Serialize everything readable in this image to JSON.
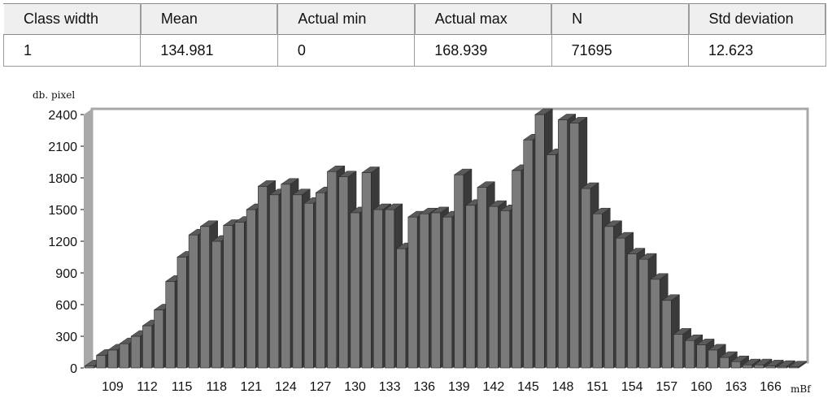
{
  "stats_table": {
    "headers": [
      "Class width",
      "Mean",
      "Actual min",
      "Actual max",
      "N",
      "Std deviation"
    ],
    "row": [
      "1",
      "134.981",
      "0",
      "168.939",
      "71695",
      "12.623"
    ]
  },
  "colors": {
    "bar_front": "#7a7a7a",
    "bar_side": "#3a3a3a",
    "bar_top": "#5a5a5a",
    "wall": "#a8a8a8",
    "background": "#ffffff"
  },
  "chart_data": {
    "type": "bar",
    "style": "3d",
    "ylabel": "db. pixel",
    "xlabel": "mBf",
    "ylim": [
      0,
      2400
    ],
    "yticks": [
      0,
      300,
      600,
      900,
      1200,
      1500,
      1800,
      2100,
      2400
    ],
    "xticks": [
      109,
      112,
      115,
      118,
      121,
      124,
      127,
      130,
      133,
      136,
      139,
      142,
      145,
      148,
      151,
      154,
      157,
      160,
      163,
      166
    ],
    "categories": [
      107,
      108,
      109,
      110,
      111,
      112,
      113,
      114,
      115,
      116,
      117,
      118,
      119,
      120,
      121,
      122,
      123,
      124,
      125,
      126,
      127,
      128,
      129,
      130,
      131,
      132,
      133,
      134,
      135,
      136,
      137,
      138,
      139,
      140,
      141,
      142,
      143,
      144,
      145,
      146,
      147,
      148,
      149,
      150,
      151,
      152,
      153,
      154,
      155,
      156,
      157,
      158,
      159,
      160,
      161,
      162,
      163,
      164,
      165,
      166,
      167,
      168
    ],
    "values": [
      20,
      120,
      170,
      230,
      300,
      400,
      550,
      820,
      1050,
      1260,
      1340,
      1200,
      1350,
      1380,
      1500,
      1720,
      1640,
      1740,
      1640,
      1560,
      1660,
      1860,
      1810,
      1470,
      1850,
      1500,
      1500,
      1130,
      1430,
      1460,
      1470,
      1430,
      1830,
      1540,
      1710,
      1530,
      1490,
      1870,
      2160,
      2400,
      2020,
      2350,
      2320,
      1700,
      1460,
      1340,
      1230,
      1080,
      1030,
      840,
      640,
      320,
      260,
      220,
      170,
      100,
      60,
      30,
      30,
      20,
      15,
      10
    ]
  }
}
